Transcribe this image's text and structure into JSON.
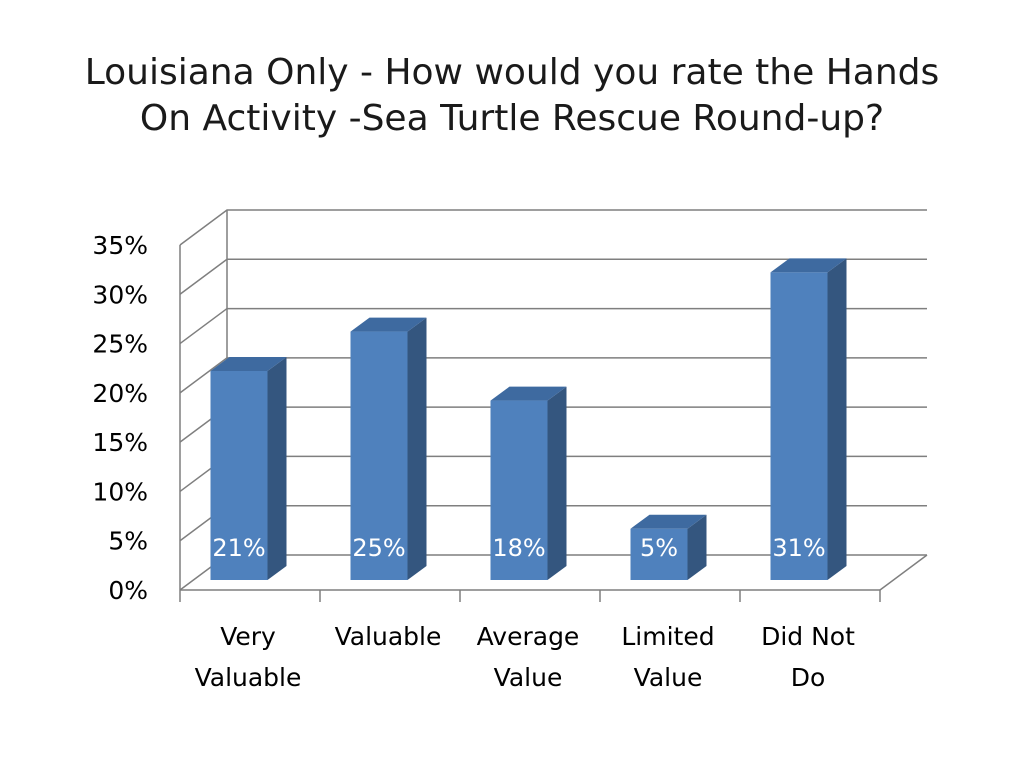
{
  "slide": {
    "title_line1": "Louisiana Only - How would you rate the Hands",
    "title_line2": "On Activity -Sea Turtle Rescue Round-up?"
  },
  "colors": {
    "bar_front": "#4f81bd",
    "bar_side": "#34567f",
    "bar_top": "#3e6aa0",
    "grid": "#7f7f7f",
    "axis": "#7f7f7f"
  },
  "chart_data": {
    "type": "bar",
    "style": "3d-column",
    "title": "Louisiana Only - How would you rate the Hands On Activity -Sea Turtle Rescue Round-up?",
    "categories": [
      [
        "Very",
        "Valuable"
      ],
      [
        "Valuable"
      ],
      [
        "Average",
        "Value"
      ],
      [
        "Limited",
        "Value"
      ],
      [
        "Did Not",
        "Do"
      ]
    ],
    "values": [
      21,
      25,
      18,
      5,
      31
    ],
    "data_labels": [
      "21%",
      "25%",
      "18%",
      "5%",
      "31%"
    ],
    "yticks": [
      "0%",
      "5%",
      "10%",
      "15%",
      "20%",
      "25%",
      "30%",
      "35%"
    ],
    "ylim": [
      0,
      35
    ],
    "grid": true,
    "legend": "none"
  }
}
